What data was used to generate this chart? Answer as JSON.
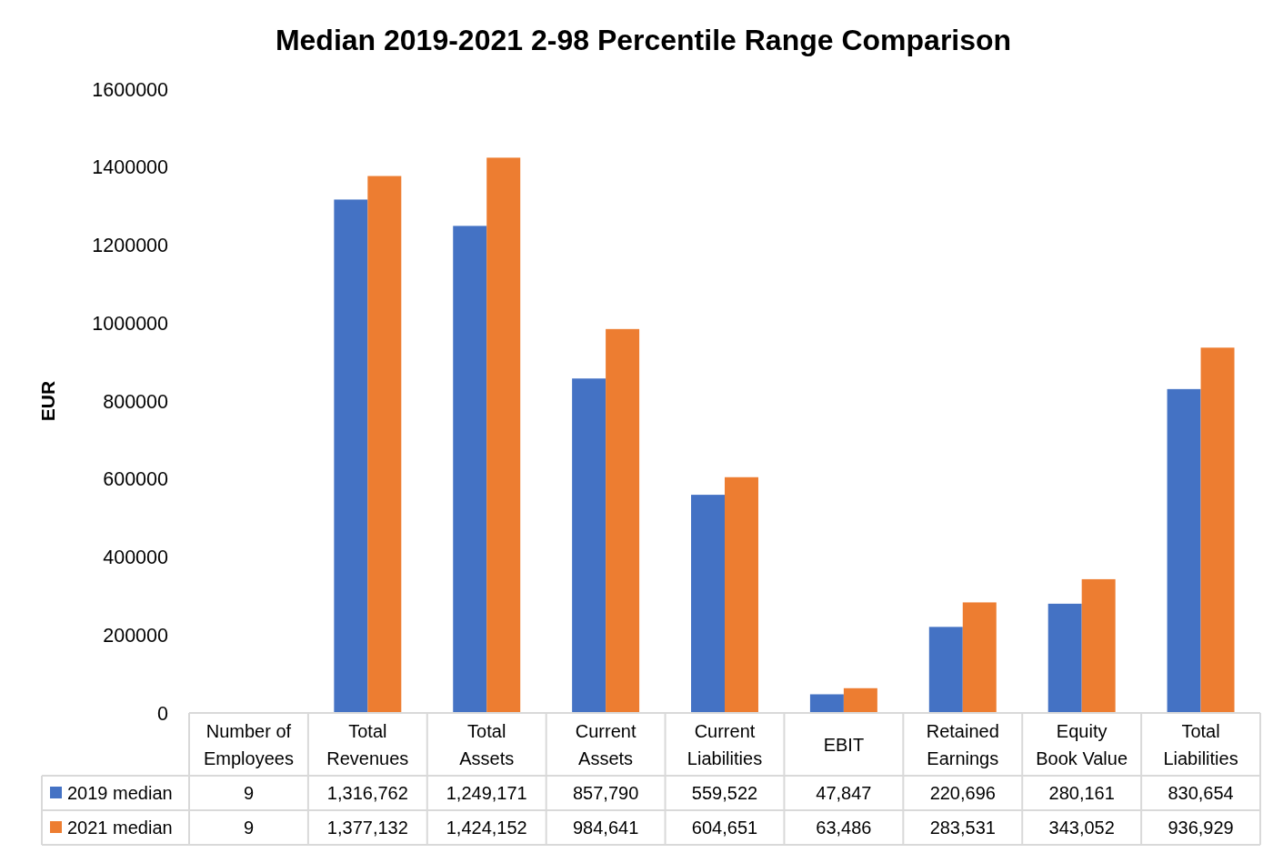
{
  "chart_data": {
    "type": "bar",
    "title": "Median 2019-2021 2-98 Percentile Range Comparison",
    "ylabel": "EUR",
    "categories": [
      "Number of Employees",
      "Total Revenues",
      "Total Assets",
      "Current Assets",
      "Current Liabilities",
      "EBIT",
      "Retained Earnings",
      "Equity Book Value",
      "Total Liabilities"
    ],
    "series": [
      {
        "name": "2019 median",
        "color": "#4472c4",
        "values": [
          9,
          1316762,
          1249171,
          857790,
          559522,
          47847,
          220696,
          280161,
          830654
        ],
        "value_labels": [
          "9",
          "1,316,762",
          "1,249,171",
          "857,790",
          "559,522",
          "47,847",
          "220,696",
          "280,161",
          "830,654"
        ]
      },
      {
        "name": "2021 median",
        "color": "#ed7d31",
        "values": [
          9,
          1377132,
          1424152,
          984641,
          604651,
          63486,
          283531,
          343052,
          936929
        ],
        "value_labels": [
          "9",
          "1,377,132",
          "1,424,152",
          "984,641",
          "604,651",
          "63,486",
          "283,531",
          "343,052",
          "936,929"
        ]
      }
    ],
    "ylim": [
      0,
      1600000
    ],
    "yticks": [
      0,
      200000,
      400000,
      600000,
      800000,
      1000000,
      1200000,
      1400000,
      1600000
    ],
    "legend": "bottom"
  }
}
